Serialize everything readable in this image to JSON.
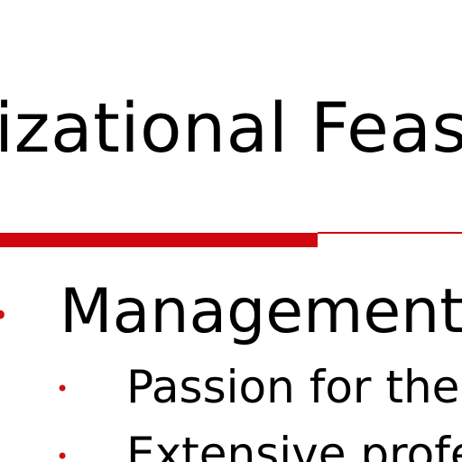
{
  "slide": {
    "title": "izational Feas",
    "accent_color": "#d0080e",
    "bullets": [
      {
        "text": "Management",
        "marker": "•"
      },
      {
        "text": "Passion for the",
        "marker": "•"
      },
      {
        "text": "Extensive profe",
        "marker": "•"
      }
    ]
  }
}
